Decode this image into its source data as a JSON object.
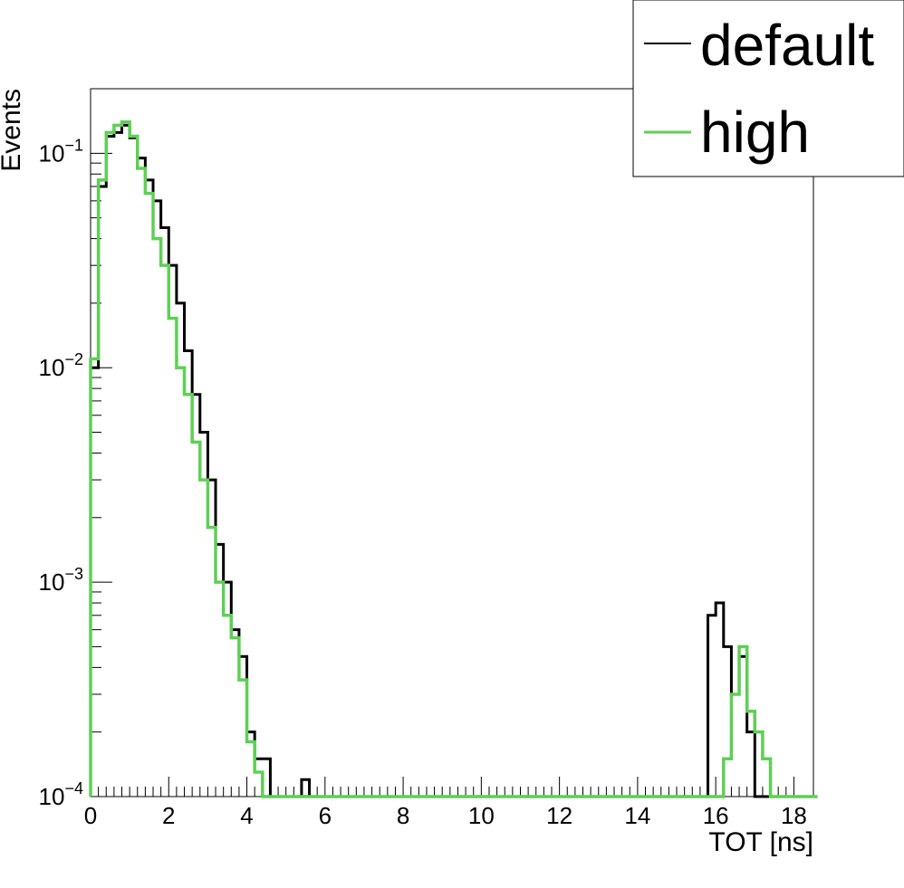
{
  "chart_data": {
    "type": "line",
    "style": "step-histogram",
    "xlabel": "TOT [ns]",
    "ylabel": "Events",
    "xlim": [
      0,
      18.5
    ],
    "ylim": [
      0.0001,
      0.2
    ],
    "yscale": "log",
    "grid": false,
    "legend_position": "top-right",
    "x_ticks": [
      0,
      2,
      4,
      6,
      8,
      10,
      12,
      14,
      16,
      18
    ],
    "x_tick_labels": [
      "0",
      "2",
      "4",
      "6",
      "8",
      "10",
      "12",
      "14",
      "16",
      "18"
    ],
    "y_ticks": [
      0.1,
      0.01,
      0.001,
      0.0001
    ],
    "y_tick_labels": [
      {
        "base": "10",
        "exp": "−1"
      },
      {
        "base": "10",
        "exp": "−2"
      },
      {
        "base": "10",
        "exp": "−3"
      },
      {
        "base": "10",
        "exp": "−4"
      }
    ],
    "bin_width": 0.2,
    "series": [
      {
        "name": "default",
        "color": "#000000",
        "bins": [
          [
            0.0,
            0.01
          ],
          [
            0.2,
            0.07
          ],
          [
            0.4,
            0.12
          ],
          [
            0.6,
            0.125
          ],
          [
            0.8,
            0.135
          ],
          [
            1.0,
            0.118
          ],
          [
            1.2,
            0.095
          ],
          [
            1.4,
            0.075
          ],
          [
            1.6,
            0.06
          ],
          [
            1.8,
            0.045
          ],
          [
            2.0,
            0.03
          ],
          [
            2.2,
            0.02
          ],
          [
            2.4,
            0.012
          ],
          [
            2.6,
            0.0075
          ],
          [
            2.8,
            0.005
          ],
          [
            3.0,
            0.003
          ],
          [
            3.2,
            0.0015
          ],
          [
            3.4,
            0.001
          ],
          [
            3.6,
            0.0006
          ],
          [
            3.8,
            0.00045
          ],
          [
            4.0,
            0.0002
          ],
          [
            4.2,
            0.00015
          ],
          [
            4.4,
            0.00015
          ],
          [
            4.6,
            0.0001
          ],
          [
            5.4,
            0.00012
          ],
          [
            5.6,
            0.0001
          ],
          [
            15.8,
            0.0007
          ],
          [
            16.0,
            0.0008
          ],
          [
            16.2,
            0.0005
          ],
          [
            16.4,
            0.0003
          ],
          [
            16.6,
            0.00045
          ],
          [
            16.8,
            0.0002
          ],
          [
            17.0,
            0.0001
          ]
        ]
      },
      {
        "name": "high",
        "color": "#5fcf56",
        "bins": [
          [
            0.0,
            0.011
          ],
          [
            0.2,
            0.075
          ],
          [
            0.4,
            0.125
          ],
          [
            0.6,
            0.135
          ],
          [
            0.8,
            0.14
          ],
          [
            1.0,
            0.12
          ],
          [
            1.2,
            0.085
          ],
          [
            1.4,
            0.065
          ],
          [
            1.6,
            0.04
          ],
          [
            1.8,
            0.03
          ],
          [
            2.0,
            0.017
          ],
          [
            2.2,
            0.01
          ],
          [
            2.4,
            0.0075
          ],
          [
            2.6,
            0.0045
          ],
          [
            2.8,
            0.003
          ],
          [
            3.0,
            0.0018
          ],
          [
            3.2,
            0.001
          ],
          [
            3.4,
            0.0007
          ],
          [
            3.6,
            0.00055
          ],
          [
            3.8,
            0.00035
          ],
          [
            4.0,
            0.00018
          ],
          [
            4.2,
            0.00013
          ],
          [
            4.4,
            0.0001
          ],
          [
            16.0,
            0.0001
          ],
          [
            16.2,
            0.00015
          ],
          [
            16.4,
            0.0003
          ],
          [
            16.6,
            0.0005
          ],
          [
            16.8,
            0.00025
          ],
          [
            17.0,
            0.0002
          ],
          [
            17.2,
            0.00015
          ],
          [
            17.4,
            0.0001
          ]
        ]
      }
    ]
  }
}
